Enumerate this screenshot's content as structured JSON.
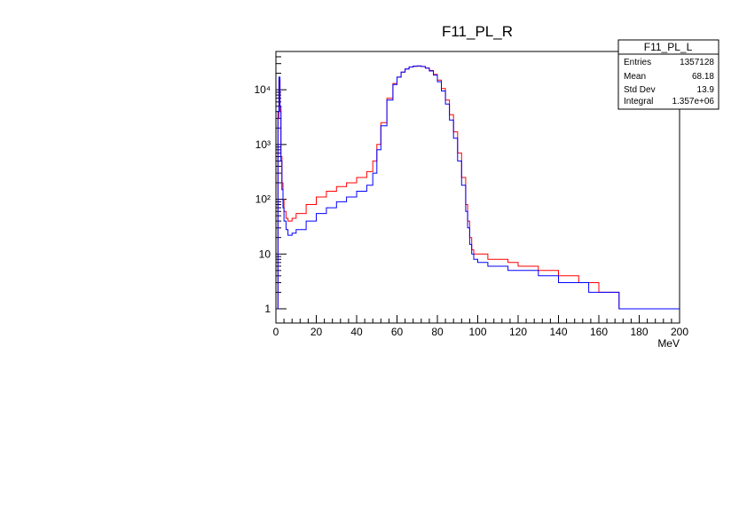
{
  "chart_data": {
    "type": "line",
    "title": "F11_PL_R",
    "xlabel": "MeV",
    "ylabel": "",
    "xlim": [
      0,
      200
    ],
    "ylim": [
      0.55,
      50000
    ],
    "yscale": "log",
    "grid": false,
    "x_ticks": [
      "0",
      "20",
      "40",
      "60",
      "80",
      "100",
      "120",
      "140",
      "160",
      "180",
      "200"
    ],
    "y_ticks": [
      {
        "value": 1,
        "label": "1"
      },
      {
        "value": 10,
        "label": "10"
      },
      {
        "value": 100,
        "label": "10²"
      },
      {
        "value": 1000,
        "label": "10³"
      },
      {
        "value": 10000,
        "label": "10⁴"
      }
    ],
    "series": [
      {
        "name": "F11_PL_R",
        "color": "#ff0000",
        "x": [
          0.5,
          1,
          1.5,
          2,
          2.5,
          3,
          3.5,
          4,
          5,
          6,
          8,
          10,
          15,
          20,
          25,
          30,
          35,
          40,
          45,
          48,
          50,
          52,
          55,
          58,
          60,
          62,
          64,
          66,
          68,
          70,
          72,
          74,
          76,
          78,
          80,
          82,
          84,
          86,
          88,
          90,
          92,
          94,
          95,
          96,
          97,
          98,
          100,
          105,
          110,
          115,
          120,
          125,
          130,
          135,
          140,
          145,
          150,
          155,
          160,
          165,
          170,
          175,
          180,
          185
        ],
        "y": [
          1,
          3000,
          15000,
          4000,
          600,
          200,
          100,
          60,
          45,
          40,
          45,
          55,
          80,
          110,
          140,
          170,
          200,
          250,
          320,
          500,
          1000,
          2500,
          7000,
          13000,
          17000,
          21000,
          24000,
          26000,
          26800,
          27000,
          26500,
          25000,
          22500,
          19000,
          15000,
          10500,
          6500,
          3500,
          1700,
          700,
          250,
          80,
          40,
          20,
          12,
          10,
          10,
          8,
          8,
          7,
          6,
          6,
          5,
          5,
          4,
          4,
          3,
          3,
          2,
          2,
          1,
          1,
          1,
          1
        ]
      },
      {
        "name": "F11_PL_L",
        "color": "#0000ff",
        "x": [
          0.5,
          1,
          1.5,
          2,
          2.5,
          3,
          3.5,
          4,
          5,
          6,
          8,
          10,
          15,
          20,
          25,
          30,
          35,
          40,
          45,
          48,
          50,
          52,
          55,
          58,
          60,
          62,
          64,
          66,
          68,
          70,
          72,
          74,
          76,
          78,
          80,
          82,
          84,
          86,
          88,
          90,
          92,
          94,
          95,
          96,
          97,
          98,
          100,
          105,
          110,
          115,
          120,
          125,
          130,
          135,
          140,
          145,
          150,
          155,
          160,
          165,
          170,
          175,
          180,
          185,
          190,
          195,
          200
        ],
        "y": [
          1,
          4000,
          17000,
          5000,
          500,
          150,
          70,
          40,
          28,
          22,
          24,
          28,
          40,
          55,
          70,
          90,
          110,
          140,
          180,
          300,
          800,
          2200,
          6500,
          12500,
          17000,
          21000,
          24000,
          26000,
          27000,
          27200,
          26600,
          24800,
          22000,
          18500,
          14000,
          9500,
          5500,
          2800,
          1300,
          500,
          180,
          60,
          30,
          15,
          10,
          8,
          7,
          6,
          6,
          5,
          5,
          5,
          4,
          4,
          3,
          3,
          3,
          2,
          2,
          2,
          1,
          1,
          1,
          1,
          1,
          1,
          1
        ]
      }
    ]
  },
  "stats_box": {
    "title": "F11_PL_L",
    "rows": [
      {
        "label": "Entries",
        "value": "1357128"
      },
      {
        "label": "Mean",
        "value": "68.18"
      },
      {
        "label": "Std Dev",
        "value": "13.9"
      },
      {
        "label": "Integral",
        "value": "1.357e+06"
      }
    ]
  }
}
